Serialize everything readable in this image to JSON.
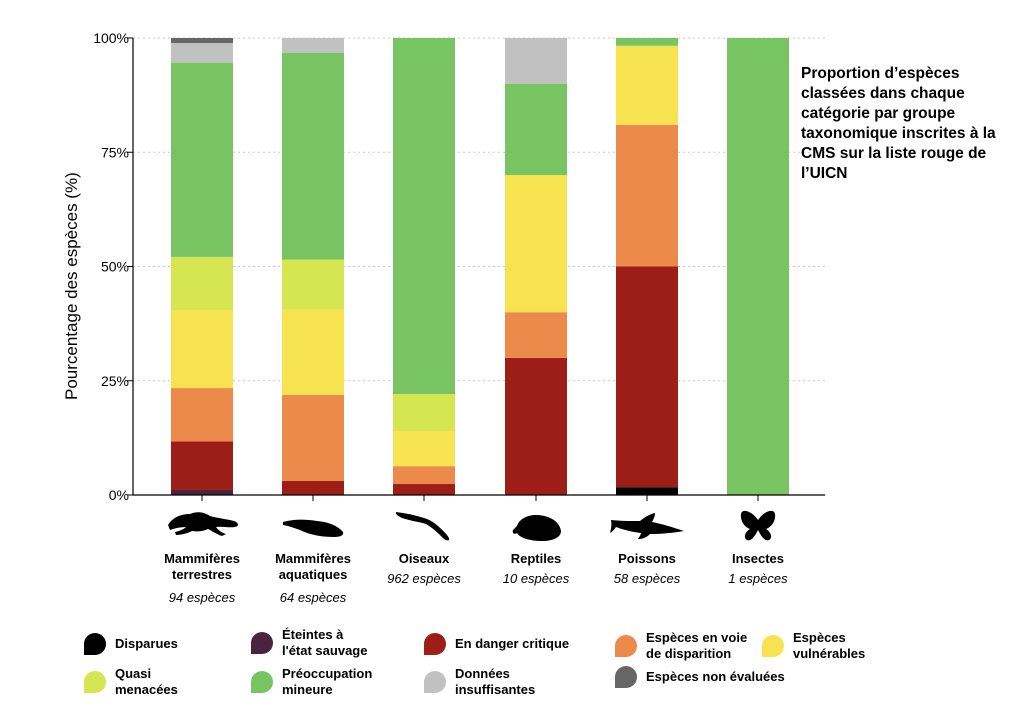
{
  "chart_data": {
    "type": "bar",
    "stacked": true,
    "title": "Proportion d’espèces classées dans chaque catégorie par groupe taxonomique inscrites à la CMS sur la liste rouge de l’UICN",
    "ylabel": "Pourcentage des espèces (%)",
    "xlabel": "",
    "ylim": [
      0,
      100
    ],
    "yticks": [
      "0%",
      "25%",
      "50%",
      "75%",
      "100%"
    ],
    "grid": true,
    "categories": [
      "Mammifères terrestres",
      "Mammifères aquatiques",
      "Oiseaux",
      "Reptiles",
      "Poissons",
      "Insectes"
    ],
    "category_lines": [
      [
        "Mammifères",
        "terrestres"
      ],
      [
        "Mammifères",
        "aquatiques"
      ],
      [
        "Oiseaux"
      ],
      [
        "Reptiles"
      ],
      [
        "Poissons"
      ],
      [
        "Insectes"
      ]
    ],
    "counts": [
      "94 espèces",
      "64 espèces",
      "962 espèces",
      "10 espèces",
      "58 espèces",
      "1 espèces"
    ],
    "series": [
      {
        "name": "Disparues",
        "color": "#000000",
        "values": [
          0,
          0,
          0,
          0,
          1.7,
          0
        ]
      },
      {
        "name": "Éteintes à l'état sauvage",
        "color": "#4a2340",
        "values": [
          1.1,
          0,
          0,
          0,
          0,
          0
        ]
      },
      {
        "name": "En danger critique",
        "color": "#9c1e16",
        "values": [
          10.6,
          3.1,
          2.4,
          30,
          48.3,
          0
        ]
      },
      {
        "name": "Espèces en voie de disparition",
        "color": "#ec8a4c",
        "values": [
          11.7,
          18.8,
          3.9,
          10,
          31,
          0
        ]
      },
      {
        "name": "Espèces vulnérables",
        "color": "#f7e350",
        "values": [
          17,
          18.7,
          7.7,
          30,
          17.3,
          0
        ]
      },
      {
        "name": "Quasi menacées",
        "color": "#d5e650",
        "values": [
          11.7,
          10.9,
          8.1,
          0,
          0,
          0
        ]
      },
      {
        "name": "Préoccupation mineure",
        "color": "#78c462",
        "values": [
          42.5,
          45.3,
          77.9,
          20,
          1.7,
          100
        ]
      },
      {
        "name": "Données insuffisantes",
        "color": "#c1c1c1",
        "values": [
          4.3,
          3.2,
          0,
          10,
          0,
          0
        ]
      },
      {
        "name": "Espèces non évaluées",
        "color": "#666666",
        "values": [
          1.1,
          0,
          0,
          0,
          0,
          0
        ]
      }
    ]
  },
  "legend": [
    {
      "lines": [
        "Disparues"
      ],
      "color": "#000000"
    },
    {
      "lines": [
        "Éteintes à",
        "l'état sauvage"
      ],
      "color": "#4a2340"
    },
    {
      "lines": [
        "En danger critique"
      ],
      "color": "#9c1e16"
    },
    {
      "lines": [
        "Espèces en voie",
        "de disparition"
      ],
      "color": "#ec8a4c"
    },
    {
      "lines": [
        "Espèces",
        "vulnérables"
      ],
      "color": "#f7e350"
    },
    {
      "lines": [
        "Quasi",
        "menacées"
      ],
      "color": "#d5e650"
    },
    {
      "lines": [
        "Préoccupation",
        "mineure"
      ],
      "color": "#78c462"
    },
    {
      "lines": [
        "Données",
        "insuffisantes"
      ],
      "color": "#c1c1c1"
    },
    {
      "lines": [
        "Espèces non évaluées"
      ],
      "color": "#666666"
    }
  ],
  "icons": [
    "terrestrial-mammal-icon",
    "whale-icon",
    "bird-icon",
    "turtle-icon",
    "shark-icon",
    "butterfly-icon"
  ]
}
